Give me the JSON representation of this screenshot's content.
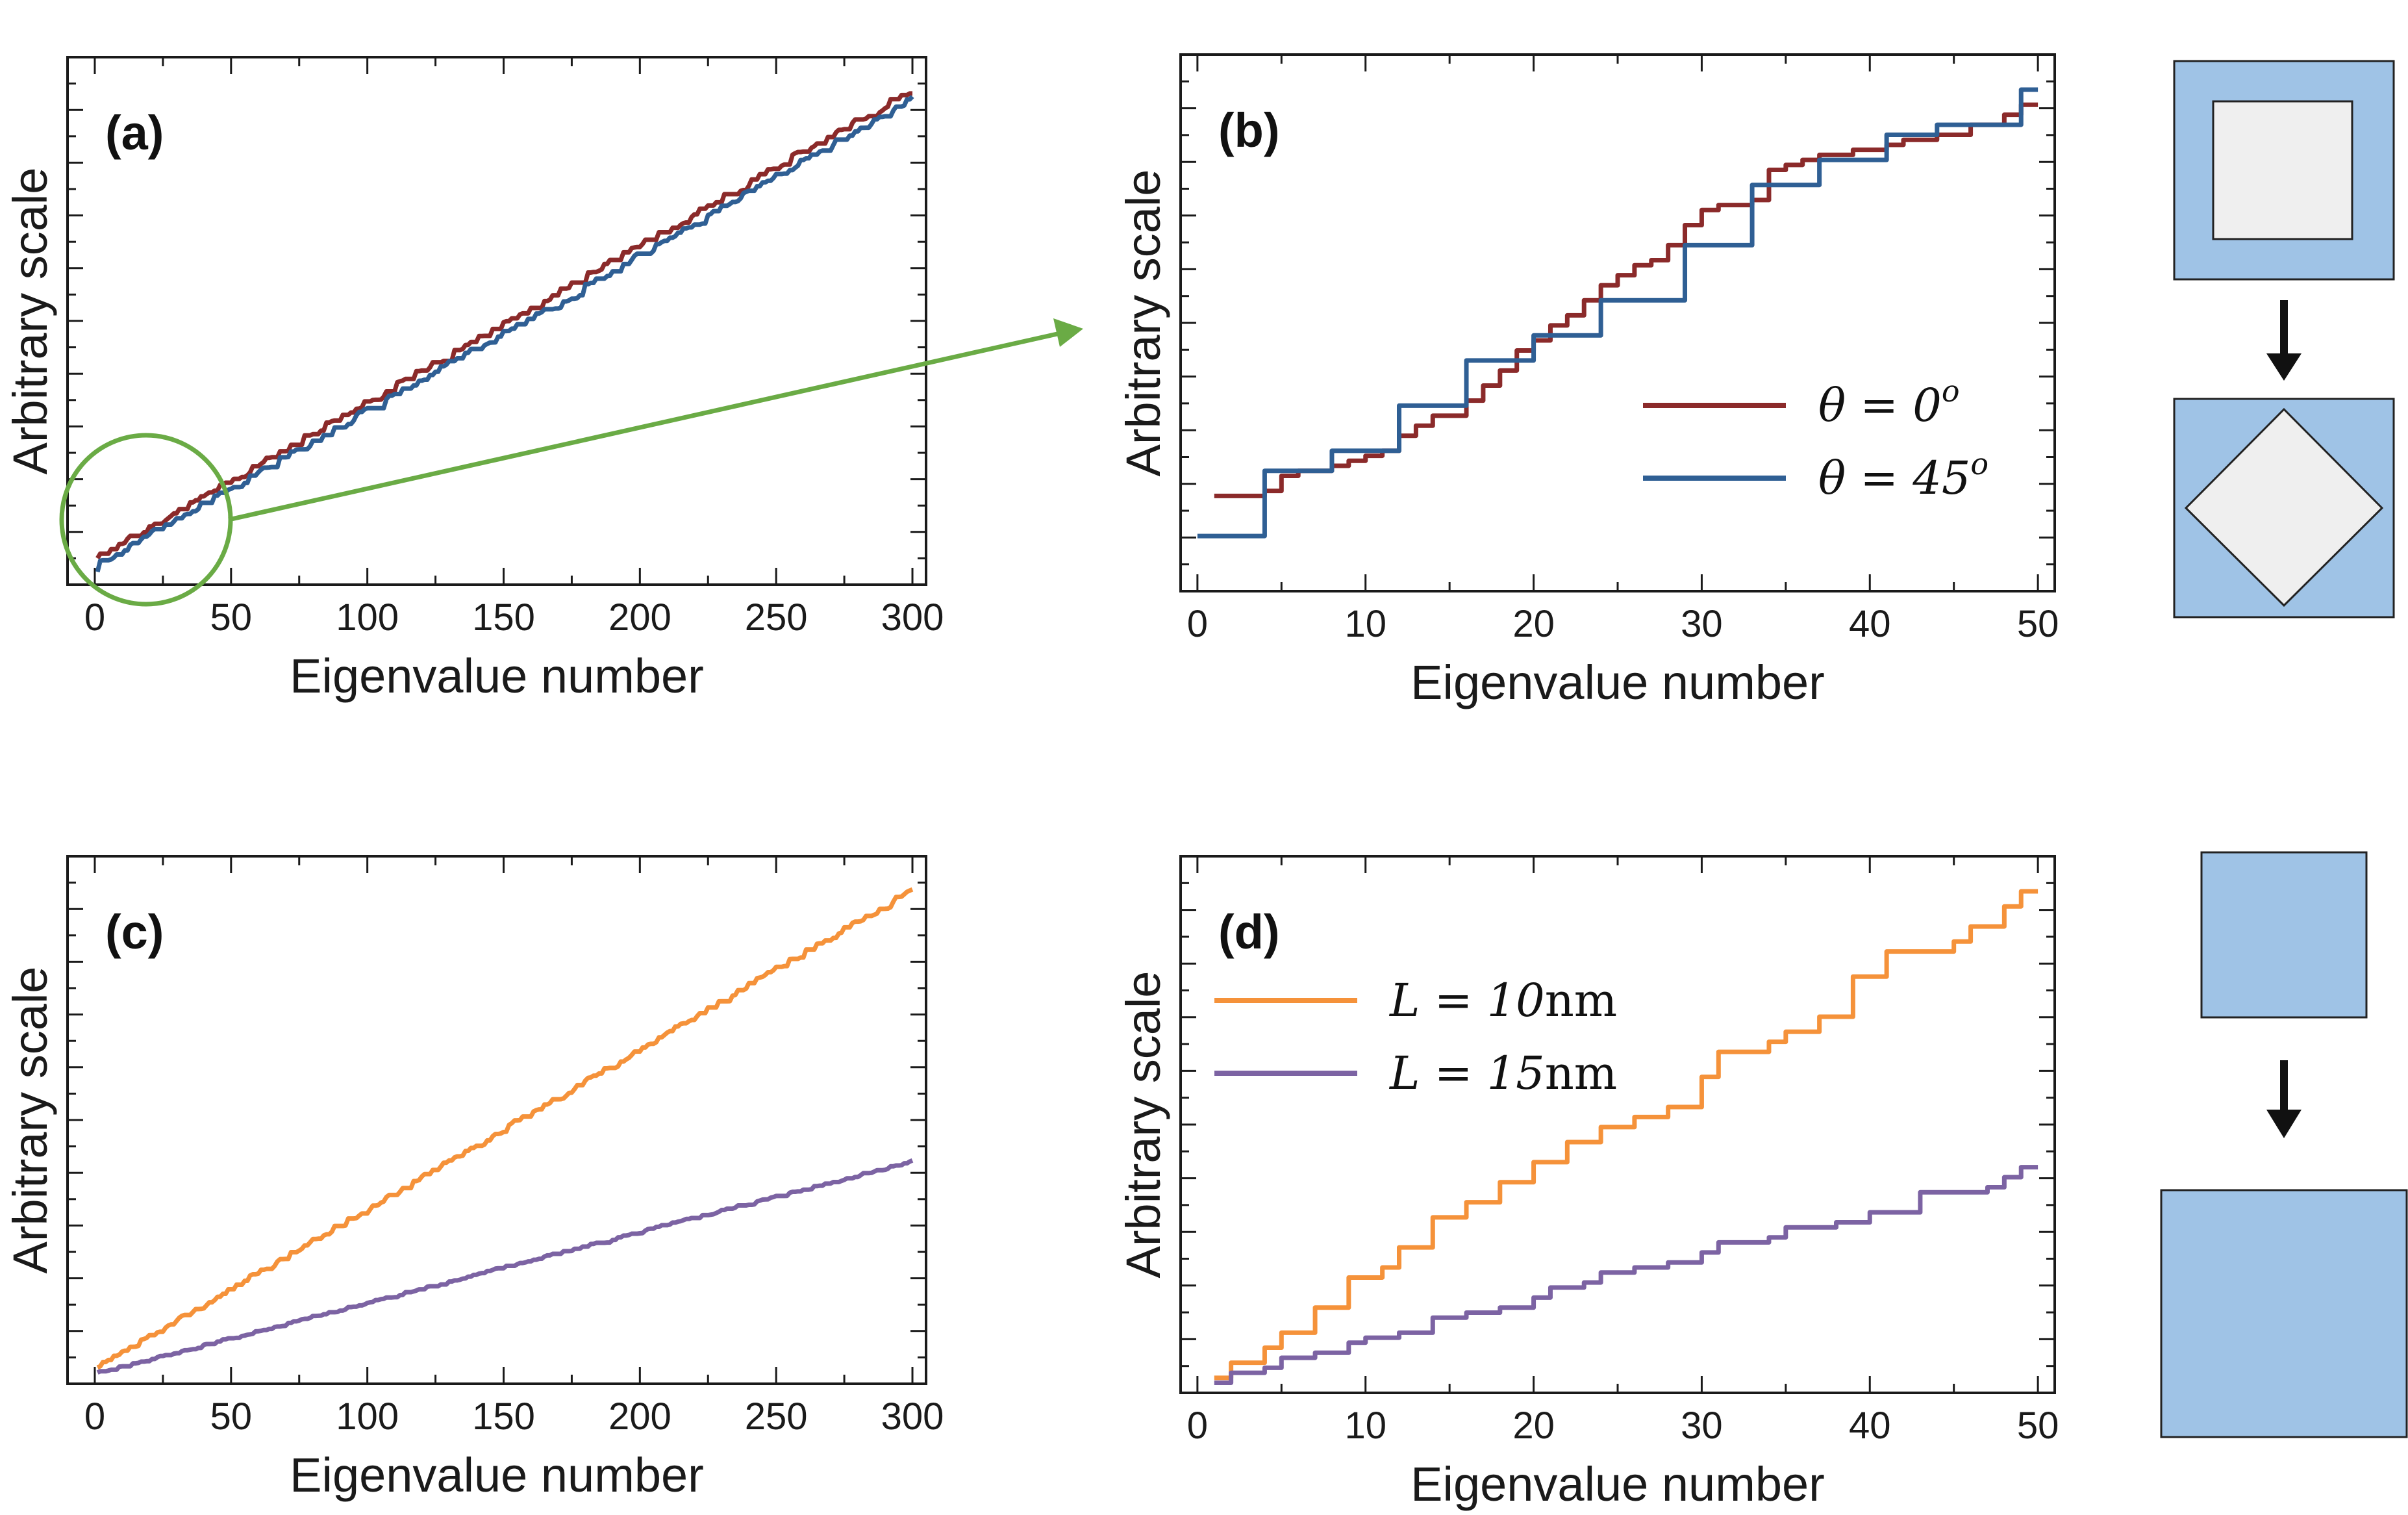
{
  "colors": {
    "red": "#8b2a2a",
    "blue": "#2f5f94",
    "orange": "#f5923a",
    "purple": "#7c63a3",
    "green": "#6aab45",
    "shape_fill": "#9fc3e6",
    "shape_inner": "#efefef"
  },
  "chart_data": [
    {
      "id": "a",
      "panel_label": "(a)",
      "type": "line",
      "xlabel": "Eigenvalue number",
      "ylabel": "Arbitrary scale",
      "xlim": [
        -10,
        305
      ],
      "ylim": [
        0,
        1.07
      ],
      "xticks": [
        0,
        50,
        100,
        150,
        200,
        250,
        300
      ],
      "show_y_tick_labels": false,
      "series": [
        {
          "name": "θ = 0°",
          "color": "red",
          "generator": "staircase",
          "n": 300,
          "start": 0.05,
          "end": 1.0,
          "seed": 11,
          "noise": 0.012
        },
        {
          "name": "θ = 45°",
          "color": "blue",
          "generator": "staircase",
          "n": 300,
          "start": 0.035,
          "end": 0.98,
          "seed": 23,
          "noise": 0.012
        }
      ],
      "annotation": "zoom circle on first 50 eigenvalues with arrow to panel (b)"
    },
    {
      "id": "b",
      "panel_label": "(b)",
      "type": "line",
      "xlabel": "Eigenvalue number",
      "ylabel": "Arbitrary scale",
      "xlim": [
        -1,
        51
      ],
      "ylim": [
        0,
        1.07
      ],
      "xticks": [
        0,
        10,
        20,
        30,
        40,
        50
      ],
      "show_y_tick_labels": false,
      "series": [
        {
          "name": "θ = 0°",
          "color": "red",
          "step": "post",
          "x": [
            1,
            2,
            3,
            4,
            5,
            6,
            7,
            8,
            9,
            10,
            11,
            12,
            13,
            14,
            15,
            16,
            17,
            18,
            19,
            20,
            21,
            22,
            23,
            24,
            25,
            26,
            27,
            28,
            29,
            30,
            31,
            32,
            33,
            34,
            35,
            36,
            37,
            38,
            39,
            40,
            41,
            42,
            43,
            44,
            45,
            46,
            47,
            48,
            49,
            50
          ],
          "values": [
            0.19,
            0.19,
            0.19,
            0.2,
            0.23,
            0.24,
            0.24,
            0.25,
            0.26,
            0.27,
            0.28,
            0.31,
            0.33,
            0.35,
            0.35,
            0.38,
            0.41,
            0.44,
            0.48,
            0.5,
            0.53,
            0.55,
            0.58,
            0.61,
            0.63,
            0.65,
            0.66,
            0.69,
            0.73,
            0.76,
            0.77,
            0.77,
            0.78,
            0.84,
            0.85,
            0.86,
            0.87,
            0.87,
            0.88,
            0.88,
            0.89,
            0.9,
            0.9,
            0.91,
            0.91,
            0.93,
            0.93,
            0.95,
            0.97,
            0.97
          ]
        },
        {
          "name": "θ = 45°",
          "color": "blue",
          "step": "post",
          "x": [
            0,
            1,
            2,
            3,
            4,
            5,
            6,
            7,
            8,
            9,
            10,
            11,
            12,
            13,
            14,
            15,
            16,
            17,
            18,
            19,
            20,
            21,
            22,
            23,
            24,
            25,
            26,
            27,
            28,
            29,
            30,
            31,
            32,
            33,
            34,
            35,
            36,
            37,
            38,
            39,
            40,
            41,
            42,
            43,
            44,
            45,
            46,
            47,
            48,
            49,
            50
          ],
          "values": [
            0.11,
            0.11,
            0.11,
            0.11,
            0.24,
            0.24,
            0.24,
            0.24,
            0.28,
            0.28,
            0.28,
            0.28,
            0.37,
            0.37,
            0.37,
            0.37,
            0.46,
            0.46,
            0.46,
            0.46,
            0.51,
            0.51,
            0.51,
            0.51,
            0.58,
            0.58,
            0.58,
            0.58,
            0.58,
            0.69,
            0.69,
            0.69,
            0.69,
            0.81,
            0.81,
            0.81,
            0.81,
            0.86,
            0.86,
            0.86,
            0.86,
            0.91,
            0.91,
            0.91,
            0.93,
            0.93,
            0.93,
            0.93,
            0.93,
            1.0,
            1.0
          ]
        }
      ],
      "legend": {
        "placement": "center-right",
        "entries": [
          {
            "series": "θ = 0°",
            "text_main": "θ = 0",
            "text_sup": "o"
          },
          {
            "series": "θ = 45°",
            "text_main": "θ = 45",
            "text_sup": "o"
          }
        ]
      }
    },
    {
      "id": "c",
      "panel_label": "(c)",
      "type": "line",
      "xlabel": "Eigenvalue number",
      "ylabel": "Arbitrary scale",
      "xlim": [
        -10,
        305
      ],
      "ylim": [
        0,
        1.07
      ],
      "xticks": [
        0,
        50,
        100,
        150,
        200,
        250,
        300
      ],
      "show_y_tick_labels": false,
      "series": [
        {
          "name": "L = 10nm",
          "color": "orange",
          "generator": "staircase",
          "n": 300,
          "start": 0.03,
          "end": 1.0,
          "seed": 37,
          "noise": 0.008
        },
        {
          "name": "L = 15nm",
          "color": "purple",
          "generator": "staircase",
          "n": 300,
          "start": 0.02,
          "end": 0.45,
          "seed": 41,
          "noise": 0.004
        }
      ]
    },
    {
      "id": "d",
      "panel_label": "(d)",
      "type": "line",
      "xlabel": "Eigenvalue number",
      "ylabel": "Arbitrary scale",
      "xlim": [
        -1,
        51
      ],
      "ylim": [
        0,
        1.07
      ],
      "xticks": [
        0,
        10,
        20,
        30,
        40,
        50
      ],
      "show_y_tick_labels": false,
      "series": [
        {
          "name": "L = 10nm",
          "color": "orange",
          "step": "post",
          "x": [
            1,
            2,
            3,
            4,
            5,
            6,
            7,
            8,
            9,
            10,
            11,
            12,
            13,
            14,
            15,
            16,
            17,
            18,
            19,
            20,
            21,
            22,
            23,
            24,
            25,
            26,
            27,
            28,
            29,
            30,
            31,
            32,
            33,
            34,
            35,
            36,
            37,
            38,
            39,
            40,
            41,
            42,
            43,
            44,
            45,
            46,
            47,
            48,
            49,
            50
          ],
          "values": [
            0.03,
            0.06,
            0.06,
            0.09,
            0.12,
            0.12,
            0.17,
            0.17,
            0.23,
            0.23,
            0.25,
            0.29,
            0.29,
            0.35,
            0.35,
            0.38,
            0.38,
            0.42,
            0.42,
            0.46,
            0.46,
            0.5,
            0.5,
            0.53,
            0.53,
            0.55,
            0.55,
            0.57,
            0.57,
            0.63,
            0.68,
            0.68,
            0.68,
            0.7,
            0.72,
            0.72,
            0.75,
            0.75,
            0.83,
            0.83,
            0.88,
            0.88,
            0.88,
            0.88,
            0.9,
            0.93,
            0.93,
            0.97,
            1.0,
            1.0
          ]
        },
        {
          "name": "L = 15nm",
          "color": "purple",
          "step": "post",
          "x": [
            1,
            2,
            3,
            4,
            5,
            6,
            7,
            8,
            9,
            10,
            11,
            12,
            13,
            14,
            15,
            16,
            17,
            18,
            19,
            20,
            21,
            22,
            23,
            24,
            25,
            26,
            27,
            28,
            29,
            30,
            31,
            32,
            33,
            34,
            35,
            36,
            37,
            38,
            39,
            40,
            41,
            42,
            43,
            44,
            45,
            46,
            47,
            48,
            49,
            50
          ],
          "values": [
            0.02,
            0.04,
            0.04,
            0.05,
            0.07,
            0.07,
            0.08,
            0.08,
            0.1,
            0.11,
            0.11,
            0.12,
            0.12,
            0.15,
            0.15,
            0.16,
            0.16,
            0.17,
            0.17,
            0.19,
            0.21,
            0.21,
            0.22,
            0.24,
            0.24,
            0.25,
            0.25,
            0.26,
            0.26,
            0.28,
            0.3,
            0.3,
            0.3,
            0.31,
            0.33,
            0.33,
            0.33,
            0.34,
            0.34,
            0.36,
            0.36,
            0.36,
            0.4,
            0.4,
            0.4,
            0.4,
            0.41,
            0.43,
            0.45,
            0.45
          ]
        }
      ],
      "legend": {
        "placement": "upper-left",
        "entries": [
          {
            "series": "L = 10nm",
            "text_main": "L = 10",
            "text_unit": "nm"
          },
          {
            "series": "L = 15nm",
            "text_main": "L = 15",
            "text_unit": "nm"
          }
        ]
      }
    }
  ],
  "schematics": {
    "top": {
      "description_name": "square-to-rotated-square",
      "arrow": "down"
    },
    "bottom": {
      "description_name": "small-square-to-large-square",
      "arrow": "down"
    }
  }
}
